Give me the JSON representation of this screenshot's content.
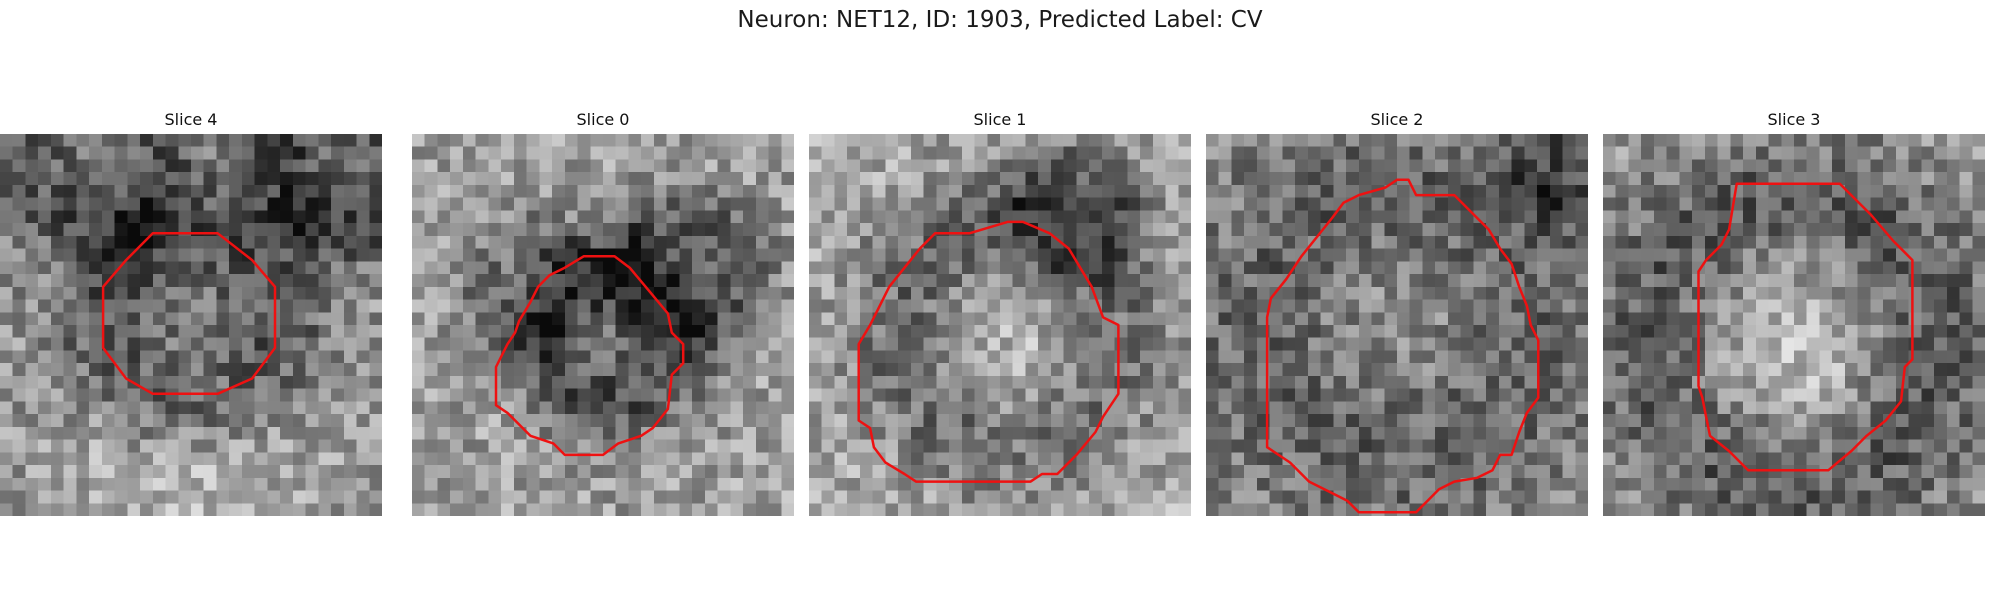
{
  "title": "Neuron: NET12, ID: 1903, Predicted Label: CV",
  "contour_color": "#ee1111",
  "slices": [
    {
      "label": "Slice 0",
      "seed": 11,
      "base": 0.62,
      "blobs": [
        [
          0.52,
          0.52,
          0.22,
          -0.38
        ],
        [
          0.72,
          0.35,
          0.18,
          -0.3
        ],
        [
          0.3,
          0.4,
          0.16,
          -0.18
        ]
      ],
      "contour": [
        [
          0.45,
          0.32
        ],
        [
          0.53,
          0.32
        ],
        [
          0.57,
          0.35
        ],
        [
          0.62,
          0.41
        ],
        [
          0.67,
          0.47
        ],
        [
          0.68,
          0.52
        ],
        [
          0.71,
          0.55
        ],
        [
          0.71,
          0.6
        ],
        [
          0.68,
          0.63
        ],
        [
          0.67,
          0.72
        ],
        [
          0.63,
          0.77
        ],
        [
          0.6,
          0.79
        ],
        [
          0.54,
          0.81
        ],
        [
          0.5,
          0.84
        ],
        [
          0.4,
          0.84
        ],
        [
          0.37,
          0.81
        ],
        [
          0.31,
          0.79
        ],
        [
          0.25,
          0.73
        ],
        [
          0.22,
          0.71
        ],
        [
          0.22,
          0.61
        ],
        [
          0.25,
          0.55
        ],
        [
          0.27,
          0.52
        ],
        [
          0.28,
          0.49
        ],
        [
          0.31,
          0.44
        ],
        [
          0.33,
          0.4
        ],
        [
          0.36,
          0.37
        ],
        [
          0.4,
          0.35
        ]
      ]
    },
    {
      "label": "Slice 1",
      "seed": 23,
      "base": 0.66,
      "blobs": [
        [
          0.52,
          0.52,
          0.34,
          -0.32
        ],
        [
          0.55,
          0.55,
          0.22,
          0.3
        ],
        [
          0.7,
          0.2,
          0.16,
          -0.3
        ]
      ],
      "contour": [
        [
          0.42,
          0.26
        ],
        [
          0.52,
          0.23
        ],
        [
          0.56,
          0.23
        ],
        [
          0.63,
          0.26
        ],
        [
          0.68,
          0.3
        ],
        [
          0.71,
          0.35
        ],
        [
          0.74,
          0.4
        ],
        [
          0.77,
          0.48
        ],
        [
          0.81,
          0.5
        ],
        [
          0.81,
          0.68
        ],
        [
          0.77,
          0.74
        ],
        [
          0.75,
          0.78
        ],
        [
          0.7,
          0.84
        ],
        [
          0.65,
          0.89
        ],
        [
          0.61,
          0.89
        ],
        [
          0.58,
          0.91
        ],
        [
          0.43,
          0.91
        ],
        [
          0.28,
          0.91
        ],
        [
          0.25,
          0.89
        ],
        [
          0.2,
          0.86
        ],
        [
          0.17,
          0.82
        ],
        [
          0.16,
          0.77
        ],
        [
          0.13,
          0.75
        ],
        [
          0.13,
          0.55
        ],
        [
          0.16,
          0.5
        ],
        [
          0.18,
          0.46
        ],
        [
          0.21,
          0.4
        ],
        [
          0.25,
          0.35
        ],
        [
          0.29,
          0.3
        ],
        [
          0.33,
          0.26
        ]
      ]
    },
    {
      "label": "Slice 2",
      "seed": 37,
      "base": 0.52,
      "blobs": [
        [
          0.5,
          0.5,
          0.4,
          -0.2
        ],
        [
          0.5,
          0.5,
          0.3,
          0.18
        ],
        [
          0.95,
          0.1,
          0.12,
          -0.35
        ]
      ],
      "contour": [
        [
          0.4,
          0.16
        ],
        [
          0.47,
          0.14
        ],
        [
          0.5,
          0.12
        ],
        [
          0.53,
          0.12
        ],
        [
          0.55,
          0.16
        ],
        [
          0.65,
          0.16
        ],
        [
          0.7,
          0.21
        ],
        [
          0.74,
          0.25
        ],
        [
          0.77,
          0.3
        ],
        [
          0.8,
          0.34
        ],
        [
          0.82,
          0.4
        ],
        [
          0.84,
          0.45
        ],
        [
          0.85,
          0.5
        ],
        [
          0.87,
          0.54
        ],
        [
          0.87,
          0.69
        ],
        [
          0.84,
          0.73
        ],
        [
          0.82,
          0.78
        ],
        [
          0.8,
          0.84
        ],
        [
          0.77,
          0.84
        ],
        [
          0.75,
          0.88
        ],
        [
          0.71,
          0.9
        ],
        [
          0.65,
          0.91
        ],
        [
          0.61,
          0.93
        ],
        [
          0.58,
          0.96
        ],
        [
          0.55,
          0.99
        ],
        [
          0.4,
          0.99
        ],
        [
          0.37,
          0.96
        ],
        [
          0.33,
          0.94
        ],
        [
          0.27,
          0.91
        ],
        [
          0.22,
          0.86
        ],
        [
          0.16,
          0.82
        ],
        [
          0.16,
          0.77
        ],
        [
          0.16,
          0.48
        ],
        [
          0.17,
          0.43
        ],
        [
          0.21,
          0.38
        ],
        [
          0.25,
          0.32
        ],
        [
          0.29,
          0.27
        ],
        [
          0.33,
          0.22
        ],
        [
          0.36,
          0.18
        ]
      ]
    },
    {
      "label": "Slice 3",
      "seed": 51,
      "base": 0.6,
      "blobs": [
        [
          0.5,
          0.55,
          0.43,
          -0.38
        ],
        [
          0.5,
          0.55,
          0.3,
          0.52
        ]
      ],
      "contour": [
        [
          0.35,
          0.13
        ],
        [
          0.62,
          0.13
        ],
        [
          0.7,
          0.21
        ],
        [
          0.76,
          0.28
        ],
        [
          0.81,
          0.33
        ],
        [
          0.81,
          0.59
        ],
        [
          0.79,
          0.61
        ],
        [
          0.78,
          0.7
        ],
        [
          0.74,
          0.75
        ],
        [
          0.69,
          0.79
        ],
        [
          0.65,
          0.83
        ],
        [
          0.59,
          0.88
        ],
        [
          0.38,
          0.88
        ],
        [
          0.33,
          0.83
        ],
        [
          0.28,
          0.79
        ],
        [
          0.27,
          0.74
        ],
        [
          0.26,
          0.69
        ],
        [
          0.25,
          0.66
        ],
        [
          0.25,
          0.36
        ],
        [
          0.27,
          0.33
        ],
        [
          0.31,
          0.29
        ],
        [
          0.33,
          0.25
        ]
      ]
    },
    {
      "label": "Slice 4",
      "seed": 67,
      "base": 0.58,
      "blobs": [
        [
          0.5,
          0.48,
          0.28,
          -0.34
        ],
        [
          0.5,
          0.9,
          0.35,
          0.25
        ],
        [
          0.9,
          0.08,
          0.2,
          -0.4
        ],
        [
          0.25,
          0.05,
          0.22,
          -0.3
        ]
      ],
      "contour": [
        [
          0.4,
          0.26
        ],
        [
          0.57,
          0.26
        ],
        [
          0.66,
          0.33
        ],
        [
          0.72,
          0.4
        ],
        [
          0.72,
          0.56
        ],
        [
          0.66,
          0.64
        ],
        [
          0.57,
          0.68
        ],
        [
          0.4,
          0.68
        ],
        [
          0.33,
          0.64
        ],
        [
          0.27,
          0.56
        ],
        [
          0.27,
          0.4
        ],
        [
          0.33,
          0.33
        ]
      ]
    }
  ]
}
